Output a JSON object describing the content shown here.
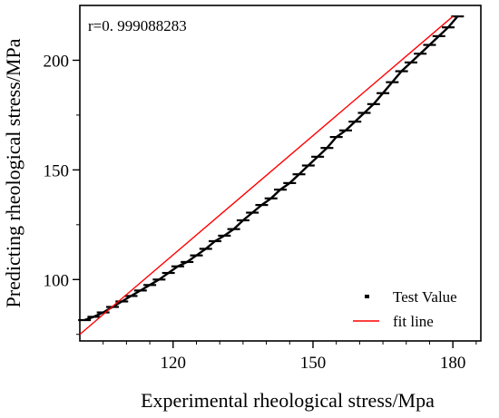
{
  "chart_data": {
    "type": "scatter",
    "xlabel": "Experimental rheological stress/Mpa",
    "ylabel": "Predicting rheological stress/MPa",
    "annotation": "r=0. 999088283",
    "xlim": [
      100,
      186
    ],
    "ylim": [
      72,
      225
    ],
    "xticks": [
      120,
      150,
      180
    ],
    "yticks": [
      100,
      150,
      200
    ],
    "grid": false,
    "legend_position": "bottom-right",
    "colors": {
      "test_value": "#000000",
      "fit_line": "#ff0000"
    },
    "series": [
      {
        "name": "Test Value",
        "marker": "dash",
        "points": [
          [
            101,
            81.5
          ],
          [
            103,
            83
          ],
          [
            105,
            85
          ],
          [
            107,
            87.5
          ],
          [
            109,
            90
          ],
          [
            111,
            92.5
          ],
          [
            113,
            95
          ],
          [
            115,
            97.5
          ],
          [
            117,
            100
          ],
          [
            119,
            103
          ],
          [
            121,
            106
          ],
          [
            123,
            108
          ],
          [
            125,
            111
          ],
          [
            127,
            114
          ],
          [
            129,
            117.5
          ],
          [
            131,
            120
          ],
          [
            133,
            123
          ],
          [
            135,
            127
          ],
          [
            137,
            130.5
          ],
          [
            139,
            134
          ],
          [
            141,
            137
          ],
          [
            143,
            141
          ],
          [
            145,
            144
          ],
          [
            147,
            148
          ],
          [
            149,
            152
          ],
          [
            151,
            156
          ],
          [
            153,
            160
          ],
          [
            155,
            165
          ],
          [
            157,
            168
          ],
          [
            159,
            172
          ],
          [
            161,
            176
          ],
          [
            163,
            180
          ],
          [
            165,
            185
          ],
          [
            167,
            190
          ],
          [
            169,
            195
          ],
          [
            171,
            199
          ],
          [
            173,
            203
          ],
          [
            175,
            207
          ],
          [
            177,
            211
          ],
          [
            179,
            215
          ],
          [
            181,
            220
          ]
        ]
      },
      {
        "name": "fit line",
        "type": "line",
        "x": [
          100,
          180
        ],
        "y": [
          75,
          220
        ]
      }
    ]
  }
}
